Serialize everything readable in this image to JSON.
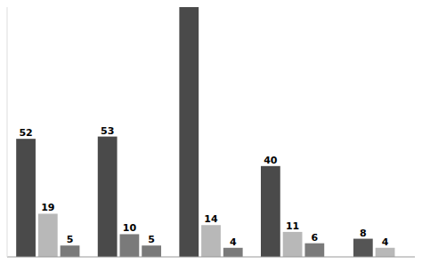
{
  "chart_data": {
    "type": "bar",
    "categories": [
      null,
      null,
      null,
      null,
      null
    ],
    "series": [
      {
        "values": [
          52,
          53,
          110,
          40,
          8
        ],
        "value_labels": [
          "52",
          "53",
          null,
          "40",
          "8"
        ],
        "colors": [
          "#4a4a4a",
          "#4a4a4a",
          "#4a4a4a",
          "#4a4a4a",
          "#555555"
        ]
      },
      {
        "values": [
          19,
          10,
          14,
          11,
          4
        ],
        "colors": [
          "#b8b8b8",
          "#7a7a7a",
          "#b8b8b8",
          "#b8b8b8",
          "#b8b8b8"
        ]
      },
      {
        "values": [
          5,
          5,
          4,
          6,
          null
        ],
        "color": "#7a7a7a"
      }
    ],
    "ylim": [
      0,
      110
    ],
    "grid": false,
    "tick_labels": false,
    "data_labels": true
  }
}
